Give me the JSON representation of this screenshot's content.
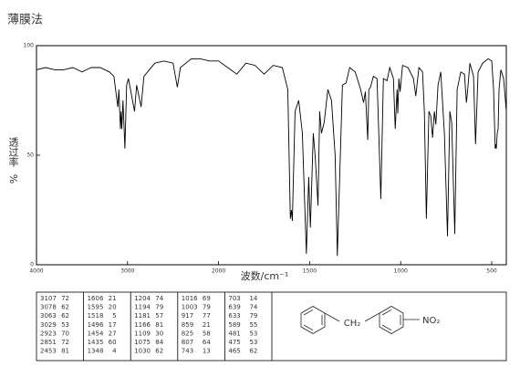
{
  "title": "薄膜法",
  "chart_data": {
    "type": "line",
    "xlabel": "波数/cm⁻¹",
    "ylabel": "透过率",
    "yunit": "%",
    "color": "#000000",
    "xlim": [
      4000,
      420
    ],
    "x_scale": {
      "break": 2000,
      "ratio": 2
    },
    "xticks": [
      4000,
      3000,
      2000,
      1500,
      1000,
      500
    ],
    "ylim": [
      0,
      100
    ],
    "yticks": [
      0,
      50,
      100
    ],
    "x": [
      4000,
      3900,
      3800,
      3700,
      3600,
      3500,
      3400,
      3300,
      3200,
      3150,
      3107,
      3095,
      3078,
      3070,
      3063,
      3050,
      3029,
      3010,
      2990,
      2923,
      2900,
      2851,
      2820,
      2700,
      2600,
      2500,
      2453,
      2420,
      2300,
      2200,
      2100,
      2000,
      1950,
      1900,
      1850,
      1800,
      1750,
      1700,
      1650,
      1620,
      1606,
      1600,
      1595,
      1580,
      1560,
      1540,
      1518,
      1505,
      1496,
      1480,
      1470,
      1454,
      1445,
      1435,
      1420,
      1400,
      1380,
      1360,
      1348,
      1335,
      1320,
      1300,
      1280,
      1250,
      1220,
      1204,
      1194,
      1181,
      1175,
      1166,
      1150,
      1130,
      1109,
      1095,
      1075,
      1060,
      1040,
      1030,
      1020,
      1016,
      1010,
      1003,
      990,
      960,
      930,
      917,
      900,
      880,
      870,
      859,
      845,
      835,
      825,
      815,
      807,
      795,
      780,
      760,
      743,
      730,
      720,
      703,
      690,
      670,
      650,
      639,
      633,
      620,
      600,
      589,
      575,
      550,
      520,
      500,
      490,
      481,
      478,
      475,
      470,
      465,
      460,
      450,
      435,
      420
    ],
    "values": [
      89,
      90,
      89,
      89,
      90,
      88,
      90,
      90,
      88,
      86,
      72,
      80,
      62,
      70,
      62,
      75,
      53,
      82,
      85,
      70,
      82,
      72,
      86,
      92,
      93,
      92,
      81,
      90,
      94,
      94,
      93,
      93,
      90,
      87,
      92,
      91,
      87,
      91,
      90,
      80,
      21,
      25,
      20,
      70,
      75,
      60,
      5,
      40,
      17,
      60,
      50,
      27,
      70,
      60,
      65,
      80,
      75,
      50,
      4,
      40,
      82,
      83,
      90,
      88,
      80,
      74,
      79,
      57,
      80,
      81,
      86,
      85,
      30,
      85,
      84,
      90,
      85,
      62,
      80,
      69,
      85,
      79,
      91,
      90,
      85,
      77,
      90,
      88,
      70,
      21,
      70,
      68,
      58,
      70,
      64,
      82,
      88,
      60,
      13,
      70,
      65,
      14,
      80,
      88,
      87,
      74,
      79,
      92,
      86,
      55,
      88,
      92,
      94,
      93,
      80,
      53,
      55,
      53,
      60,
      62,
      80,
      89,
      85,
      70
    ]
  },
  "peak_table": {
    "columns": [
      [
        [
          3107,
          72
        ],
        [
          3078,
          62
        ],
        [
          3063,
          62
        ],
        [
          3029,
          53
        ],
        [
          2923,
          70
        ],
        [
          2851,
          72
        ],
        [
          2453,
          81
        ]
      ],
      [
        [
          1606,
          21
        ],
        [
          1595,
          20
        ],
        [
          1518,
          5
        ],
        [
          1496,
          17
        ],
        [
          1454,
          27
        ],
        [
          1435,
          60
        ],
        [
          1348,
          4
        ]
      ],
      [
        [
          1204,
          74
        ],
        [
          1194,
          79
        ],
        [
          1181,
          57
        ],
        [
          1166,
          81
        ],
        [
          1109,
          30
        ],
        [
          1075,
          84
        ],
        [
          1030,
          62
        ]
      ],
      [
        [
          1016,
          69
        ],
        [
          1003,
          79
        ],
        [
          917,
          77
        ],
        [
          859,
          21
        ],
        [
          825,
          58
        ],
        [
          807,
          64
        ],
        [
          743,
          13
        ]
      ],
      [
        [
          703,
          14
        ],
        [
          639,
          74
        ],
        [
          633,
          79
        ],
        [
          589,
          55
        ],
        [
          481,
          53
        ],
        [
          475,
          53
        ],
        [
          465,
          62
        ]
      ]
    ]
  },
  "structure": {
    "labels": [
      "CH₂",
      "NO₂"
    ]
  }
}
